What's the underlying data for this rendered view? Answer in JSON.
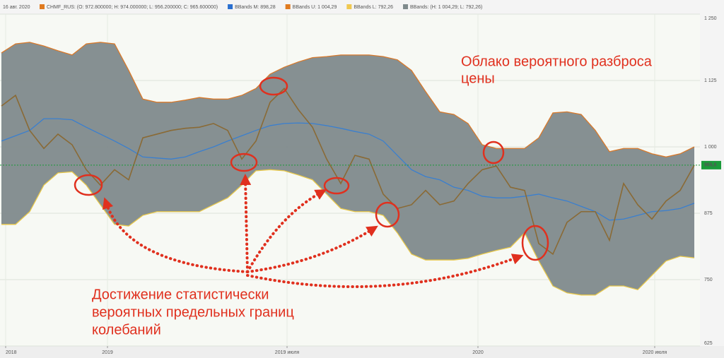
{
  "chart_data": {
    "type": "line",
    "header_date": "16 авг. 2020",
    "header_bands": "BBands: (H: 1 004,29; L: 792,26)",
    "annotations": [
      [
        "Облако вероятного разброса",
        "цены"
      ],
      [
        "Достижение статистически",
        "вероятных предельных границ",
        "колебаний"
      ]
    ],
    "x": [
      0,
      1,
      2,
      3,
      4,
      5,
      6,
      7,
      8,
      9,
      10,
      11,
      12,
      13,
      14,
      15,
      16,
      17,
      18,
      19,
      20,
      21,
      22,
      23,
      24,
      25,
      26,
      27,
      28,
      29,
      30,
      31,
      32,
      33,
      34,
      35,
      36,
      37,
      38,
      39,
      40,
      41,
      42,
      43,
      44,
      45,
      46,
      47,
      48,
      49
    ],
    "series": [
      {
        "name": "CHMF_RUS",
        "legend_text": ": (O: 972.800000; H: 974.000000; L: 956.200000; C: 965.600000)",
        "color": "#8a6a35",
        "values": [
          1077,
          1097,
          1031,
          997,
          1024,
          1004,
          957,
          928,
          957,
          938,
          1017,
          1024,
          1031,
          1035,
          1037,
          1044,
          1031,
          977,
          1011,
          1084,
          1110,
          1070,
          1037,
          977,
          931,
          984,
          977,
          911,
          884,
          891,
          918,
          891,
          898,
          931,
          957,
          964,
          924,
          918,
          818,
          798,
          858,
          878,
          878,
          824,
          931,
          891,
          864,
          898,
          918,
          965.6
        ]
      },
      {
        "name": "BBands M",
        "legend_text": ": 898,28",
        "color": "#3a7fcf",
        "values": [
          1011,
          1021,
          1031,
          1053,
          1053,
          1051,
          1037,
          1024,
          1011,
          997,
          981,
          979,
          977,
          981,
          991,
          1000,
          1011,
          1021,
          1031,
          1040,
          1044,
          1045,
          1044,
          1040,
          1035,
          1029,
          1024,
          1011,
          984,
          957,
          944,
          938,
          924,
          918,
          907,
          904,
          904,
          907,
          911,
          904,
          898,
          888,
          878,
          862,
          864,
          871,
          878,
          880,
          884,
          894
        ]
      },
      {
        "name": "BBands U",
        "legend_text": ": 1 004,29",
        "color": "#d9792a",
        "values": [
          1177,
          1194,
          1197,
          1190,
          1181,
          1173,
          1194,
          1197,
          1194,
          1144,
          1090,
          1084,
          1084,
          1088,
          1093,
          1090,
          1090,
          1097,
          1110,
          1137,
          1150,
          1160,
          1168,
          1170,
          1173,
          1173,
          1173,
          1170,
          1164,
          1144,
          1104,
          1066,
          1061,
          1044,
          1004,
          997,
          997,
          997,
          1017,
          1064,
          1066,
          1061,
          1031,
          991,
          997,
          997,
          987,
          981,
          987,
          1000
        ]
      },
      {
        "name": "BBands L",
        "legend_text": ": 792,26",
        "color": "#e8c84a",
        "values": [
          854,
          854,
          878,
          928,
          951,
          953,
          928,
          891,
          854,
          851,
          871,
          878,
          878,
          878,
          878,
          891,
          904,
          928,
          955,
          957,
          955,
          947,
          938,
          911,
          884,
          878,
          878,
          871,
          838,
          798,
          787,
          787,
          787,
          790,
          798,
          805,
          811,
          838,
          785,
          738,
          725,
          721,
          721,
          738,
          738,
          731,
          758,
          785,
          794,
          791
        ]
      }
    ],
    "band_fill": "#7f8a8c",
    "xlim": [
      0,
      49
    ],
    "xticks": [
      {
        "value": 0.3,
        "label": "2018"
      },
      {
        "value": 7.5,
        "label": "2019"
      },
      {
        "value": 20.2,
        "label": "2019 июля"
      },
      {
        "value": 33.7,
        "label": "2020"
      },
      {
        "value": 46.2,
        "label": "2020 июля"
      }
    ],
    "ylim": [
      625,
      1250
    ],
    "yticks": [
      625,
      750,
      875,
      {
        "value": 1000,
        "label": "1 000"
      },
      {
        "value": 1125,
        "label": "1 125"
      },
      {
        "value": 1250,
        "label": "1 250"
      }
    ],
    "grid": true,
    "last_price": {
      "value": 965.6,
      "label": "965,6",
      "color": "#1a9a3a"
    }
  }
}
